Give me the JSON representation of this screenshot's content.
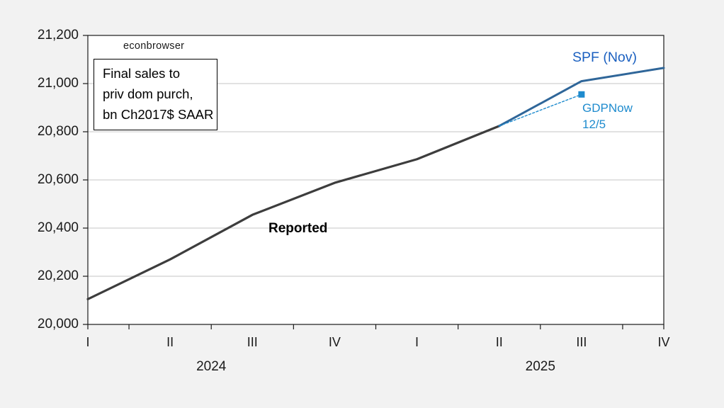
{
  "chart": {
    "watermark": "econbrowser",
    "note_lines": [
      "Final sales to",
      "priv dom purch,",
      "bn Ch2017$ SAAR"
    ],
    "labels": {
      "reported": "Reported",
      "spf": "SPF (Nov)",
      "gdpnow_line1": "GDPNow",
      "gdpnow_line2": "12/5"
    },
    "colors": {
      "spf_label": "#1b60c0",
      "gdpnow_label": "#1e8bce"
    }
  },
  "chart_data": {
    "type": "line",
    "title": "Final sales to priv dom purch, bn Ch2017$ SAAR",
    "xlabel": "",
    "ylabel": "bn Ch2017$ SAAR",
    "ylim": [
      20000,
      21200
    ],
    "y_ticks": [
      20000,
      20200,
      20400,
      20600,
      20800,
      21000,
      21200
    ],
    "y_tick_labels": [
      "20,000",
      "20,200",
      "20,400",
      "20,600",
      "20,800",
      "21,000",
      "21,200"
    ],
    "x_categories": [
      "2024Q1",
      "2024Q2",
      "2024Q3",
      "2024Q4",
      "2025Q1",
      "2025Q2",
      "2025Q3",
      "2025Q4"
    ],
    "x_tick_labels": [
      "I",
      "II",
      "III",
      "IV",
      "I",
      "II",
      "III",
      "IV"
    ],
    "year_labels": [
      {
        "label": "2024",
        "quarter_span": [
          0,
          3
        ]
      },
      {
        "label": "2025",
        "quarter_span": [
          4,
          7
        ]
      }
    ],
    "grid": "horizontal",
    "legend_position": "inline-annotations",
    "frame_color": "#1a1a1a",
    "grid_color": "#c6c6c6",
    "plot_bg": "#ffffff",
    "series": [
      {
        "name": "Reported",
        "color": "#3d3d3d",
        "style": "solid",
        "width": 3.2,
        "x": [
          0,
          1,
          2,
          3,
          4,
          5
        ],
        "values": [
          20105,
          20270,
          20455,
          20588,
          20686,
          20824
        ]
      },
      {
        "name": "SPF (Nov)",
        "color": "#2f6699",
        "style": "solid",
        "width": 3,
        "x": [
          5,
          6,
          7
        ],
        "values": [
          20824,
          21010,
          21065
        ]
      },
      {
        "name": "GDPNow 12/5",
        "color": "#1e8bce",
        "style": "dashed",
        "width": 1.4,
        "x": [
          5,
          6
        ],
        "values": [
          20824,
          20955
        ],
        "end_marker": "square",
        "marker_size": 9
      }
    ]
  }
}
